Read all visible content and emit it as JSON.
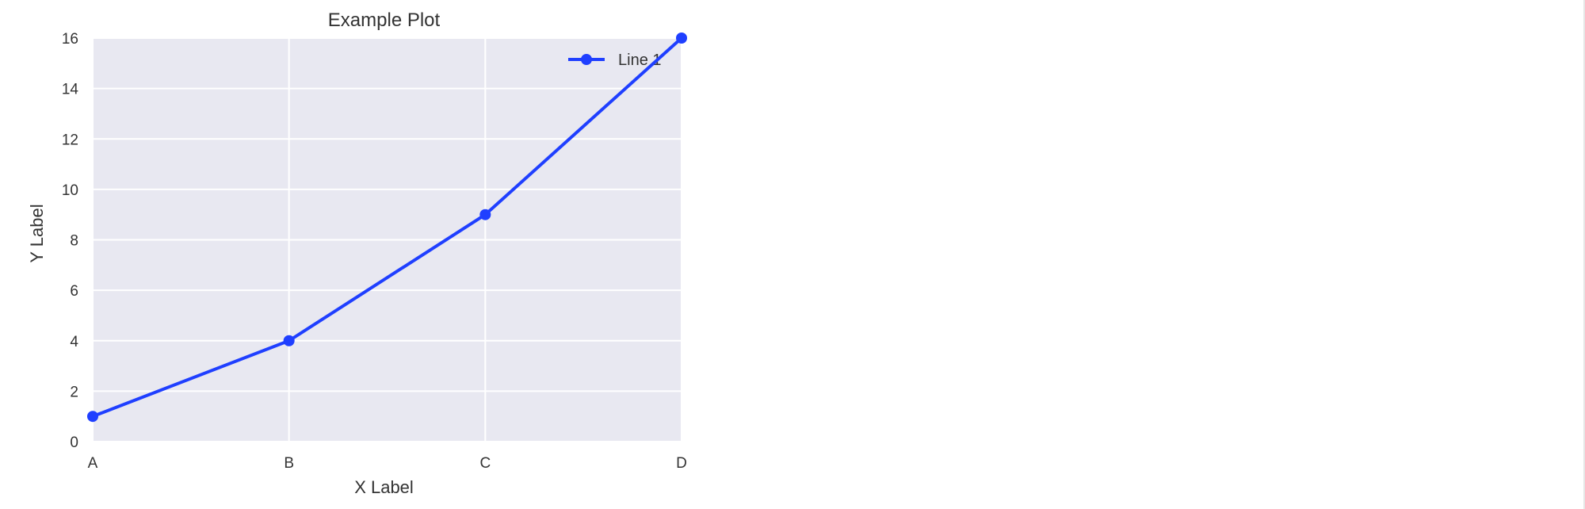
{
  "chart_data": {
    "type": "line",
    "title": "Example Plot",
    "xlabel": "X Label",
    "ylabel": "Y Label",
    "categories": [
      "A",
      "B",
      "C",
      "D"
    ],
    "series": [
      {
        "name": "Line 1",
        "values": [
          1,
          4,
          9,
          16
        ],
        "color": "#1f3fff",
        "marker": "circle"
      }
    ],
    "ylim": [
      0,
      16
    ],
    "yticks": [
      0,
      2,
      4,
      6,
      8,
      10,
      12,
      14,
      16
    ],
    "grid": true,
    "legend_position": "top-right",
    "colors": {
      "plot_background": "#e8e8f1",
      "grid": "#ffffff",
      "text": "#333333"
    }
  }
}
